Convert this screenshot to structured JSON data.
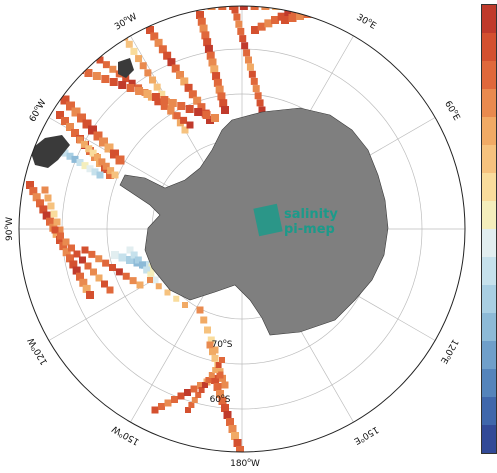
{
  "map": {
    "projection": "south-polar-stereographic",
    "longitude_labels": [
      {
        "text": "30°W",
        "base": "30",
        "sup": "o",
        "suffix": "W"
      },
      {
        "text": "30°E",
        "base": "30",
        "sup": "o",
        "suffix": "E"
      },
      {
        "text": "60°W",
        "base": "60",
        "sup": "o",
        "suffix": "W"
      },
      {
        "text": "60°E",
        "base": "60",
        "sup": "o",
        "suffix": "E"
      },
      {
        "text": "90°W",
        "base": "90",
        "sup": "o",
        "suffix": "W"
      },
      {
        "text": "120°W",
        "base": "120",
        "sup": "o",
        "suffix": "W"
      },
      {
        "text": "120°E",
        "base": "120",
        "sup": "o",
        "suffix": "E"
      },
      {
        "text": "150°W",
        "base": "150",
        "sup": "o",
        "suffix": "W"
      },
      {
        "text": "150°E",
        "base": "150",
        "sup": "o",
        "suffix": "E"
      },
      {
        "text": "180°W",
        "base": "180",
        "sup": "o",
        "suffix": "W"
      }
    ],
    "latitude_labels": [
      {
        "text": "70°S",
        "base": "70",
        "sup": "o",
        "suffix": "S"
      },
      {
        "text": "60°S",
        "base": "60",
        "sup": "o",
        "suffix": "S"
      }
    ],
    "colors": {
      "land": "#7f7f7f",
      "ocean": "#ffffff",
      "grid": "#bdbdbd"
    }
  },
  "logo": {
    "line1": "salinity",
    "line2": "pi-mep",
    "color": "#1c9a8a"
  },
  "colorbar": {
    "colormap": "RdYlBu",
    "colors": [
      "#c03a2b",
      "#d4502f",
      "#e0683b",
      "#e98a4f",
      "#f1aa65",
      "#f6c27e",
      "#f9dc9c",
      "#f4eebc",
      "#e2eef0",
      "#c6e1ec",
      "#a9cfe3",
      "#8dbad7",
      "#6f9fca",
      "#5484bb",
      "#3f67ab",
      "#324a97"
    ]
  }
}
